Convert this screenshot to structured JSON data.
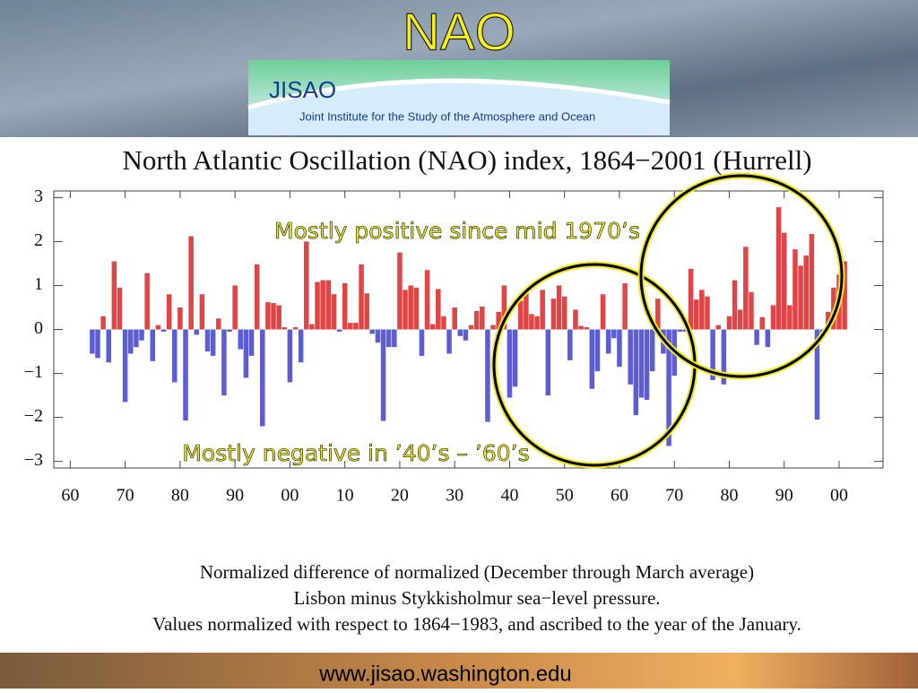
{
  "slide": {
    "title": "NAO",
    "logo_name": "JISAO",
    "logo_text": "Joint Institute for the Study of the Atmosphere and Ocean",
    "footer": "www.jisao.washington.edu"
  },
  "chart_data": {
    "type": "bar",
    "title": "North Atlantic Oscillation (NAO) index, 1864−2001 (Hurrell)",
    "x": [
      1864,
      1865,
      1866,
      1867,
      1868,
      1869,
      1870,
      1871,
      1872,
      1873,
      1874,
      1875,
      1876,
      1877,
      1878,
      1879,
      1880,
      1881,
      1882,
      1883,
      1884,
      1885,
      1886,
      1887,
      1888,
      1889,
      1890,
      1891,
      1892,
      1893,
      1894,
      1895,
      1896,
      1897,
      1898,
      1899,
      1900,
      1901,
      1902,
      1903,
      1904,
      1905,
      1906,
      1907,
      1908,
      1909,
      1910,
      1911,
      1912,
      1913,
      1914,
      1915,
      1916,
      1917,
      1918,
      1919,
      1920,
      1921,
      1922,
      1923,
      1924,
      1925,
      1926,
      1927,
      1928,
      1929,
      1930,
      1931,
      1932,
      1933,
      1934,
      1935,
      1936,
      1937,
      1938,
      1939,
      1940,
      1941,
      1942,
      1943,
      1944,
      1945,
      1946,
      1947,
      1948,
      1949,
      1950,
      1951,
      1952,
      1953,
      1954,
      1955,
      1956,
      1957,
      1958,
      1959,
      1960,
      1961,
      1962,
      1963,
      1964,
      1965,
      1966,
      1967,
      1968,
      1969,
      1970,
      1971,
      1972,
      1973,
      1974,
      1975,
      1976,
      1977,
      1978,
      1979,
      1980,
      1981,
      1982,
      1983,
      1984,
      1985,
      1986,
      1987,
      1988,
      1989,
      1990,
      1991,
      1992,
      1993,
      1994,
      1995,
      1996,
      1997,
      1998,
      1999,
      2000,
      2001
    ],
    "values": [
      -0.55,
      -0.65,
      0.3,
      -0.75,
      1.55,
      0.95,
      -1.65,
      -0.55,
      -0.4,
      -0.25,
      1.28,
      -0.72,
      0.1,
      -0.05,
      0.8,
      -1.2,
      0.5,
      -2.07,
      2.12,
      -0.12,
      0.8,
      -0.5,
      -0.6,
      0.25,
      -1.5,
      -0.05,
      1.0,
      -0.45,
      -1.1,
      -0.6,
      1.48,
      -2.2,
      0.62,
      0.6,
      0.55,
      0.05,
      -1.2,
      0.05,
      -0.75,
      2.0,
      0.12,
      1.08,
      1.12,
      1.12,
      0.8,
      -0.05,
      1.05,
      0.15,
      0.15,
      1.48,
      0.82,
      -0.1,
      -0.3,
      -2.08,
      -0.4,
      -0.4,
      1.75,
      0.9,
      1.0,
      0.95,
      -0.6,
      1.35,
      0.12,
      0.92,
      0.3,
      -0.55,
      0.5,
      -0.15,
      -0.25,
      0.1,
      0.42,
      0.52,
      -2.1,
      0.1,
      0.4,
      1.0,
      -1.55,
      -1.3,
      0.65,
      0.88,
      0.35,
      0.3,
      0.9,
      -1.5,
      0.7,
      1.0,
      0.75,
      -0.7,
      0.45,
      0.08,
      0.05,
      -1.35,
      -0.95,
      0.8,
      -0.55,
      -0.2,
      -0.85,
      1.05,
      -1.25,
      -1.95,
      -1.55,
      -1.6,
      -0.95,
      0.7,
      -0.55,
      -2.65,
      -1.05,
      -0.05,
      -0.05,
      1.38,
      0.68,
      0.9,
      0.75,
      -1.15,
      0.1,
      -1.25,
      0.3,
      1.12,
      0.45,
      1.88,
      0.85,
      -0.35,
      0.28,
      -0.4,
      0.55,
      2.78,
      2.2,
      0.55,
      1.82,
      1.45,
      1.68,
      2.17,
      -2.05,
      -0.15,
      0.4,
      0.95,
      1.25,
      1.55
    ],
    "positive_color": "#e04444",
    "negative_color": "#5c5cd6",
    "xlim": [
      1857,
      2008
    ],
    "xticks": [
      {
        "value": 1860,
        "label": "60"
      },
      {
        "value": 1870,
        "label": "70"
      },
      {
        "value": 1880,
        "label": "80"
      },
      {
        "value": 1890,
        "label": "90"
      },
      {
        "value": 1900,
        "label": "00"
      },
      {
        "value": 1910,
        "label": "10"
      },
      {
        "value": 1920,
        "label": "20"
      },
      {
        "value": 1930,
        "label": "30"
      },
      {
        "value": 1940,
        "label": "40"
      },
      {
        "value": 1950,
        "label": "50"
      },
      {
        "value": 1960,
        "label": "60"
      },
      {
        "value": 1970,
        "label": "70"
      },
      {
        "value": 1980,
        "label": "80"
      },
      {
        "value": 1990,
        "label": "90"
      },
      {
        "value": 2000,
        "label": "00"
      }
    ],
    "ylim": [
      -3.15,
      3.15
    ],
    "yticks": [
      {
        "value": -3,
        "label": "−3"
      },
      {
        "value": -2,
        "label": "−2"
      },
      {
        "value": -1,
        "label": "−1"
      },
      0,
      1,
      2,
      3
    ],
    "annotations": [
      "Mostly positive since mid 1970’s",
      "Mostly negative in ’40’s – ’60’s"
    ],
    "caption": [
      "Normalized difference of normalized (December through March average)",
      "Lisbon minus Stykkisholmur sea−level pressure.",
      "Values normalized with respect to 1864−1983, and ascribed to the year of the January."
    ]
  }
}
